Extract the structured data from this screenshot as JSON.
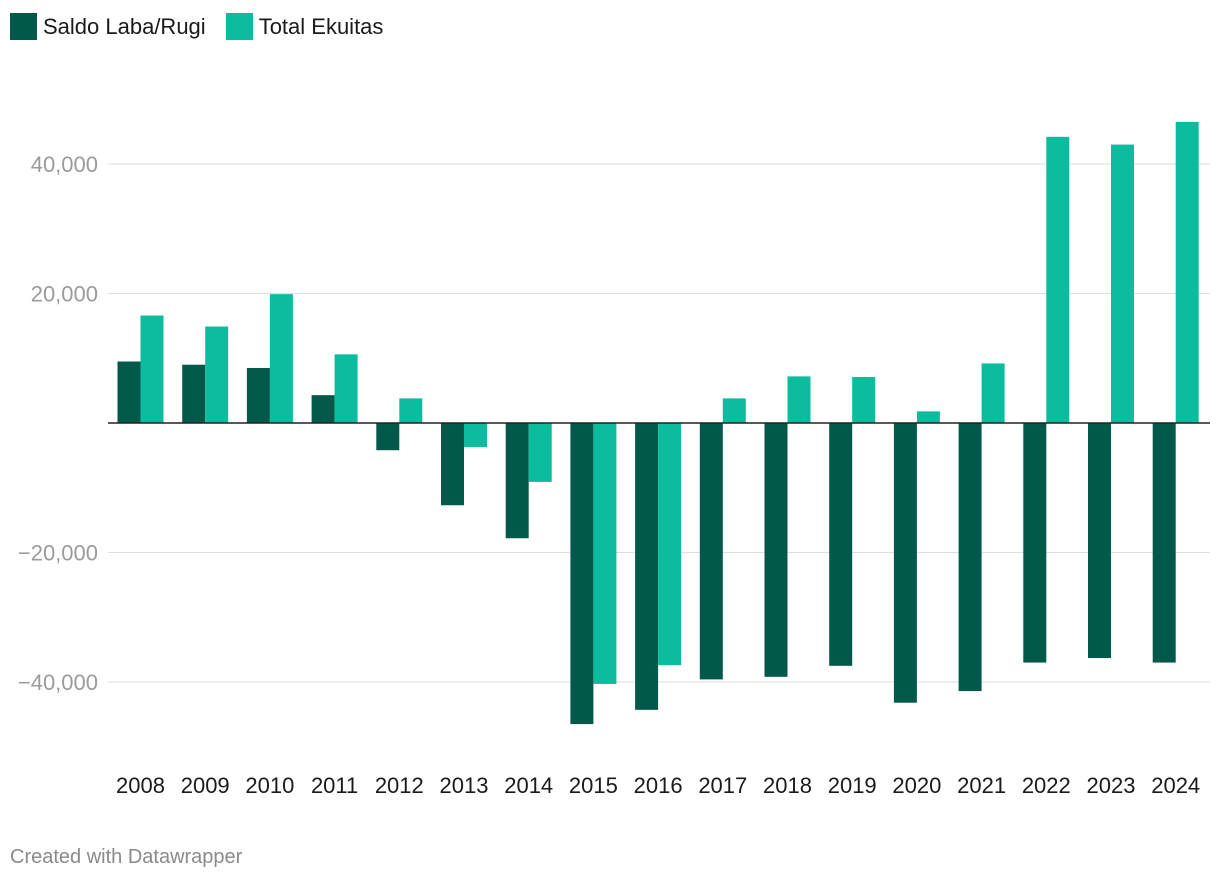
{
  "chart_data": {
    "type": "bar",
    "categories": [
      "2008",
      "2009",
      "2010",
      "2011",
      "2012",
      "2013",
      "2014",
      "2015",
      "2016",
      "2017",
      "2018",
      "2019",
      "2020",
      "2021",
      "2022",
      "2023",
      "2024"
    ],
    "series": [
      {
        "name": "Saldo Laba/Rugi",
        "color": "#02594a",
        "values": [
          9500,
          9000,
          8500,
          4300,
          -4200,
          -12700,
          -17800,
          -46500,
          -44300,
          -39600,
          -39200,
          -37500,
          -43200,
          -41400,
          -37000,
          -36300,
          -37000
        ]
      },
      {
        "name": "Total Ekuitas",
        "color": "#0cbc9e",
        "values": [
          16600,
          14900,
          19900,
          10600,
          3800,
          -3700,
          -9100,
          -40300,
          -37400,
          3800,
          7200,
          7100,
          1800,
          9200,
          44200,
          43000,
          46500
        ]
      }
    ],
    "y_ticks": [
      40000,
      20000,
      -20000,
      -40000
    ],
    "y_tick_labels": [
      "40,000",
      "20,000",
      "−20,000",
      "−40,000"
    ],
    "ylim": [
      -50000,
      50000
    ],
    "grid": true,
    "legend_position": "top-left"
  },
  "legend": {
    "items": [
      {
        "label": "Saldo Laba/Rugi",
        "color": "#02594a"
      },
      {
        "label": "Total Ekuitas",
        "color": "#0cbc9e"
      }
    ]
  },
  "footer": {
    "credit": "Created with Datawrapper"
  }
}
